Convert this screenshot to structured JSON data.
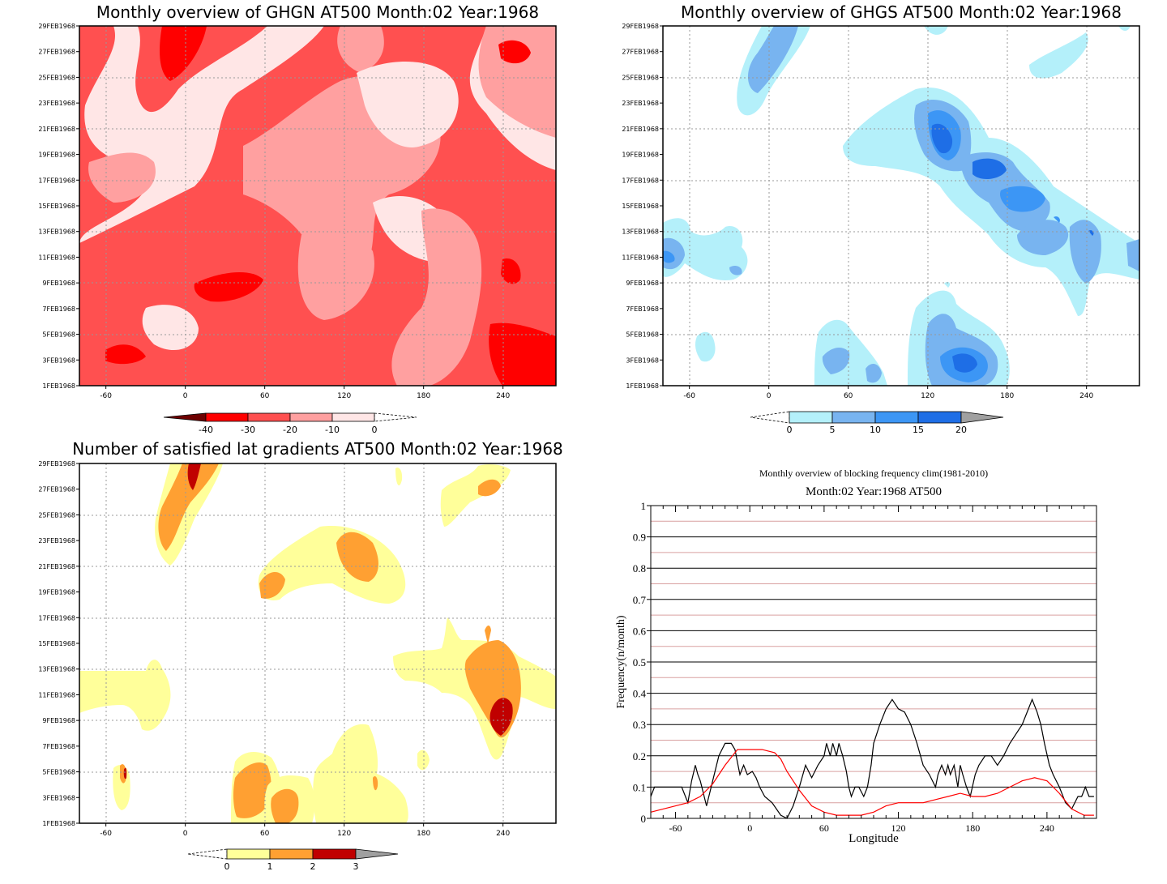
{
  "chart_data": [
    {
      "type": "heatmap",
      "title": "Monthly overview of GHGN AT500 Month:02 Year:1968",
      "x_ticks": [
        -60,
        0,
        60,
        120,
        180,
        240
      ],
      "xlim": [
        -80,
        280
      ],
      "y_ticks": [
        "1FEB1968",
        "3FEB1968",
        "5FEB1968",
        "7FEB1968",
        "9FEB1968",
        "11FEB1968",
        "13FEB1968",
        "15FEB1968",
        "17FEB1968",
        "19FEB1968",
        "21FEB1968",
        "23FEB1968",
        "25FEB1968",
        "27FEB1968",
        "29FEB1968"
      ],
      "grid": true,
      "colorbar": {
        "labels": [
          "-40",
          "-30",
          "-20",
          "-10",
          "0"
        ],
        "colors": [
          "#6e0000",
          "#ff0000",
          "#ff5050",
          "#ffa0a0",
          "#ffe6e6",
          "#ffffff"
        ],
        "open_ends": [
          "left",
          "right"
        ]
      }
    },
    {
      "type": "heatmap",
      "title": "Monthly overview of GHGS AT500 Month:02 Year:1968",
      "x_ticks": [
        -60,
        0,
        60,
        120,
        180,
        240
      ],
      "xlim": [
        -80,
        280
      ],
      "y_ticks": [
        "1FEB1968",
        "3FEB1968",
        "5FEB1968",
        "7FEB1968",
        "9FEB1968",
        "11FEB1968",
        "13FEB1968",
        "15FEB1968",
        "17FEB1968",
        "19FEB1968",
        "21FEB1968",
        "23FEB1968",
        "25FEB1968",
        "27FEB1968",
        "29FEB1968"
      ],
      "grid": true,
      "colorbar": {
        "labels": [
          "0",
          "5",
          "10",
          "15",
          "20"
        ],
        "colors": [
          "#ffffff",
          "#b4f0fa",
          "#78b4f0",
          "#3c96f5",
          "#1e6ee6",
          "#a0a0a0"
        ],
        "open_ends": [
          "left",
          "right"
        ]
      }
    },
    {
      "type": "heatmap",
      "title": "Number of satisfied lat gradients AT500 Month:02 Year:1968",
      "x_ticks": [
        -60,
        0,
        60,
        120,
        180,
        240
      ],
      "xlim": [
        -80,
        280
      ],
      "y_ticks": [
        "1FEB1968",
        "3FEB1968",
        "5FEB1968",
        "7FEB1968",
        "9FEB1968",
        "11FEB1968",
        "13FEB1968",
        "15FEB1968",
        "17FEB1968",
        "19FEB1968",
        "21FEB1968",
        "23FEB1968",
        "25FEB1968",
        "27FEB1968",
        "29FEB1968"
      ],
      "grid": true,
      "colorbar": {
        "labels": [
          "0",
          "1",
          "2",
          "3"
        ],
        "colors": [
          "#ffffff",
          "#ffff9a",
          "#ffa032",
          "#c00000",
          "#a0a0a0"
        ],
        "open_ends": [
          "left",
          "right"
        ]
      }
    },
    {
      "type": "line",
      "title": "Monthly overview of blocking frequency clim(1981-2010)",
      "subtitle": "Month:02 Year:1968  AT500",
      "xlabel": "Longitude",
      "ylabel": "Frequency(n/month)",
      "xlim": [
        -80,
        280
      ],
      "ylim": [
        0,
        1
      ],
      "x_ticks": [
        -60,
        0,
        60,
        120,
        180,
        240
      ],
      "y_ticks": [
        "0",
        "0.1",
        "0.2",
        "0.3",
        "0.4",
        "0.5",
        "0.6",
        "0.7",
        "0.8",
        "0.9",
        "1"
      ],
      "grid": true,
      "series": [
        {
          "color": "#000000",
          "x": [
            -80,
            -77,
            -70,
            -60,
            -55,
            -50,
            -47,
            -44,
            -42,
            -40,
            -35,
            -30,
            -25,
            -20,
            -15,
            -12,
            -10,
            -8,
            -5,
            -2,
            2,
            5,
            8,
            12,
            18,
            25,
            30,
            35,
            40,
            45,
            50,
            55,
            60,
            62,
            65,
            67,
            70,
            72,
            75,
            78,
            80,
            82,
            85,
            88,
            92,
            95,
            98,
            100,
            105,
            110,
            115,
            120,
            125,
            130,
            135,
            140,
            145,
            150,
            152,
            155,
            158,
            160,
            162,
            165,
            168,
            170,
            172,
            175,
            178,
            182,
            185,
            190,
            195,
            200,
            205,
            210,
            215,
            220,
            225,
            228,
            232,
            235,
            238,
            242,
            245,
            250,
            255,
            260,
            265,
            268,
            271,
            274,
            278
          ],
          "y": [
            0.07,
            0.1,
            0.1,
            0.1,
            0.1,
            0.05,
            0.12,
            0.17,
            0.14,
            0.12,
            0.04,
            0.12,
            0.2,
            0.24,
            0.24,
            0.22,
            0.18,
            0.14,
            0.17,
            0.14,
            0.15,
            0.13,
            0.1,
            0.07,
            0.05,
            0.01,
            0.0,
            0.04,
            0.1,
            0.17,
            0.13,
            0.17,
            0.2,
            0.24,
            0.2,
            0.24,
            0.2,
            0.24,
            0.2,
            0.15,
            0.1,
            0.07,
            0.1,
            0.1,
            0.07,
            0.1,
            0.17,
            0.24,
            0.3,
            0.35,
            0.38,
            0.35,
            0.34,
            0.3,
            0.24,
            0.17,
            0.14,
            0.1,
            0.14,
            0.17,
            0.14,
            0.17,
            0.14,
            0.17,
            0.1,
            0.17,
            0.14,
            0.1,
            0.07,
            0.14,
            0.17,
            0.2,
            0.2,
            0.17,
            0.2,
            0.24,
            0.27,
            0.3,
            0.35,
            0.38,
            0.34,
            0.3,
            0.24,
            0.17,
            0.14,
            0.1,
            0.05,
            0.03,
            0.07,
            0.07,
            0.1,
            0.07,
            0.07
          ]
        },
        {
          "color": "#ff0000",
          "x": [
            -80,
            -70,
            -60,
            -50,
            -40,
            -30,
            -20,
            -10,
            -5,
            0,
            10,
            20,
            25,
            30,
            40,
            50,
            60,
            70,
            80,
            90,
            100,
            110,
            120,
            130,
            140,
            150,
            160,
            170,
            180,
            190,
            200,
            210,
            220,
            230,
            240,
            250,
            260,
            270,
            278
          ],
          "y": [
            0.02,
            0.03,
            0.04,
            0.05,
            0.07,
            0.11,
            0.17,
            0.22,
            0.22,
            0.22,
            0.22,
            0.21,
            0.19,
            0.15,
            0.09,
            0.04,
            0.02,
            0.01,
            0.01,
            0.01,
            0.02,
            0.04,
            0.05,
            0.05,
            0.05,
            0.06,
            0.07,
            0.08,
            0.07,
            0.07,
            0.08,
            0.1,
            0.12,
            0.13,
            0.12,
            0.08,
            0.03,
            0.01,
            0.01
          ]
        }
      ]
    }
  ]
}
